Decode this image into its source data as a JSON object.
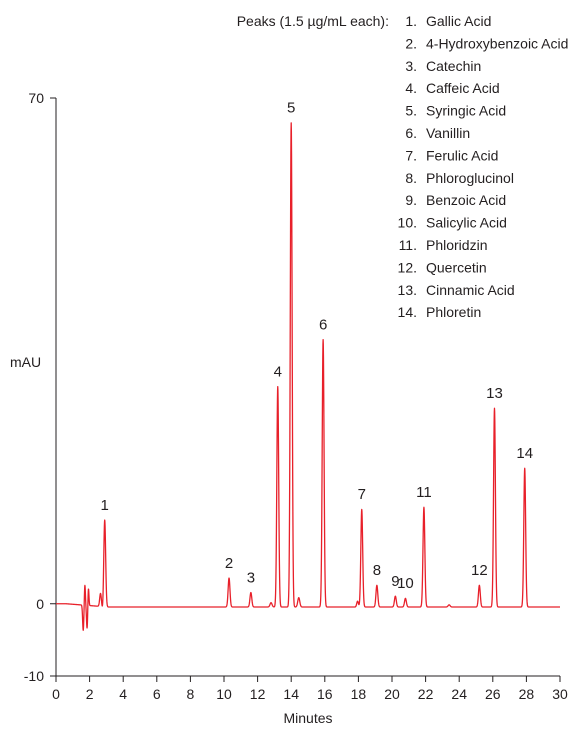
{
  "chart_data": {
    "type": "line",
    "title": "",
    "xlabel": "Minutes",
    "ylabel": "mAU",
    "xlim": [
      0,
      30
    ],
    "ylim": [
      -10,
      70
    ],
    "x_ticks": [
      "0",
      "2",
      "4",
      "6",
      "8",
      "10",
      "12",
      "14",
      "16",
      "18",
      "20",
      "22",
      "24",
      "26",
      "28",
      "30"
    ],
    "y_ticks": [
      "70",
      "0",
      "-10"
    ],
    "grid": false,
    "line_color": "#e8202a",
    "legend_title": "Peaks (1.5 µg/mL each):",
    "legend_placement": "top-right",
    "legend": [
      {
        "num": "1.",
        "name": "Gallic Acid"
      },
      {
        "num": "2.",
        "name": "4-Hydroxybenzoic Acid"
      },
      {
        "num": "3.",
        "name": "Catechin"
      },
      {
        "num": "4.",
        "name": "Caffeic Acid"
      },
      {
        "num": "5.",
        "name": "Syringic Acid"
      },
      {
        "num": "6.",
        "name": "Vanillin"
      },
      {
        "num": "7.",
        "name": "Ferulic Acid"
      },
      {
        "num": "8.",
        "name": "Phloroglucinol"
      },
      {
        "num": "9.",
        "name": "Benzoic Acid"
      },
      {
        "num": "10.",
        "name": "Salicylic Acid"
      },
      {
        "num": "11.",
        "name": "Phloridzin"
      },
      {
        "num": "12.",
        "name": "Quercetin"
      },
      {
        "num": "13.",
        "name": "Cinnamic Acid"
      },
      {
        "num": "14.",
        "name": "Phloretin"
      }
    ],
    "peaks": [
      {
        "label": "1",
        "rt": 2.9,
        "height": 12.0
      },
      {
        "label": "2",
        "rt": 10.3,
        "height": 4.0
      },
      {
        "label": "3",
        "rt": 11.6,
        "height": 2.0
      },
      {
        "label": "4",
        "rt": 13.2,
        "height": 30.5
      },
      {
        "label": "5",
        "rt": 14.0,
        "height": 67.0
      },
      {
        "label": "6",
        "rt": 15.9,
        "height": 37.0
      },
      {
        "label": "7",
        "rt": 18.2,
        "height": 13.5
      },
      {
        "label": "8",
        "rt": 19.1,
        "height": 3.0
      },
      {
        "label": "9",
        "rt": 20.2,
        "height": 1.5
      },
      {
        "label": "10",
        "rt": 20.8,
        "height": 1.2
      },
      {
        "label": "11",
        "rt": 21.9,
        "height": 13.8
      },
      {
        "label": "12",
        "rt": 25.2,
        "height": 3.0
      },
      {
        "label": "13",
        "rt": 26.1,
        "height": 27.5
      },
      {
        "label": "14",
        "rt": 27.9,
        "height": 19.2
      }
    ]
  }
}
